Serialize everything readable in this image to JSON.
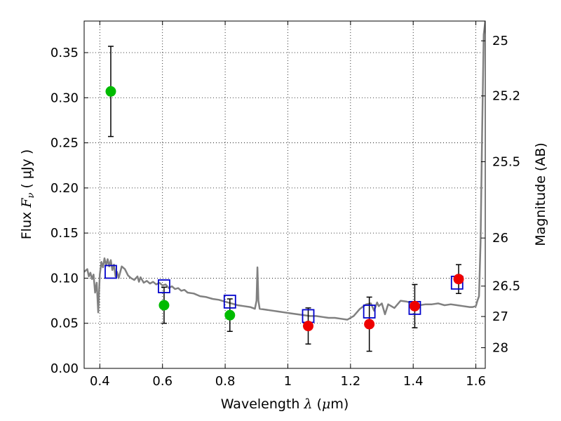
{
  "chart_data": {
    "type": "scatter",
    "title": "",
    "xlabel": {
      "prefix": "Wavelength  ",
      "symbol": "λ",
      "unit_open": " (",
      "unit_mu": "μ",
      "unit_close": "m)"
    },
    "ylabel": {
      "prefix": "Flux  ",
      "symbol": "F",
      "sub": "ν",
      "unit": "  ( μJy )"
    },
    "y2label": "Magnitude (AB)",
    "xlim": [
      0.35,
      1.63
    ],
    "ylim": [
      0.0,
      0.385
    ],
    "grid": true,
    "x_ticks": [
      0.4,
      0.6,
      0.8,
      1.0,
      1.2,
      1.4,
      1.6
    ],
    "x_tick_labels": [
      "0.4",
      "0.6",
      "0.8",
      "1",
      "1.2",
      "1.4",
      "1.6"
    ],
    "y_ticks": [
      0.0,
      0.05,
      0.1,
      0.15,
      0.2,
      0.25,
      0.3,
      0.35
    ],
    "y_tick_labels": [
      "0.00",
      "0.05",
      "0.10",
      "0.15",
      "0.20",
      "0.25",
      "0.30",
      "0.35"
    ],
    "y2_ticks": [
      {
        "label": "25",
        "flux": 0.3631
      },
      {
        "label": "25.2",
        "flux": 0.302
      },
      {
        "label": "25.5",
        "flux": 0.2291
      },
      {
        "label": "26",
        "flux": 0.1445
      },
      {
        "label": "26.5",
        "flux": 0.0912
      },
      {
        "label": "27",
        "flux": 0.0575
      },
      {
        "label": "28",
        "flux": 0.0229
      }
    ],
    "series": [
      {
        "name": "model_spectrum",
        "kind": "line",
        "color": "#808080",
        "points": [
          [
            0.35,
            0.107
          ],
          [
            0.36,
            0.11
          ],
          [
            0.365,
            0.102
          ],
          [
            0.37,
            0.106
          ],
          [
            0.375,
            0.099
          ],
          [
            0.38,
            0.104
          ],
          [
            0.385,
            0.084
          ],
          [
            0.39,
            0.095
          ],
          [
            0.395,
            0.062
          ],
          [
            0.4,
            0.104
          ],
          [
            0.405,
            0.118
          ],
          [
            0.41,
            0.112
          ],
          [
            0.415,
            0.122
          ],
          [
            0.42,
            0.114
          ],
          [
            0.425,
            0.121
          ],
          [
            0.43,
            0.113
          ],
          [
            0.435,
            0.12
          ],
          [
            0.44,
            0.109
          ],
          [
            0.445,
            0.115
          ],
          [
            0.45,
            0.102
          ],
          [
            0.455,
            0.107
          ],
          [
            0.46,
            0.1
          ],
          [
            0.47,
            0.113
          ],
          [
            0.48,
            0.11
          ],
          [
            0.49,
            0.103
          ],
          [
            0.5,
            0.1
          ],
          [
            0.51,
            0.098
          ],
          [
            0.52,
            0.102
          ],
          [
            0.525,
            0.096
          ],
          [
            0.53,
            0.101
          ],
          [
            0.54,
            0.095
          ],
          [
            0.55,
            0.097
          ],
          [
            0.56,
            0.094
          ],
          [
            0.57,
            0.096
          ],
          [
            0.58,
            0.093
          ],
          [
            0.59,
            0.095
          ],
          [
            0.6,
            0.092
          ],
          [
            0.61,
            0.093
          ],
          [
            0.62,
            0.089
          ],
          [
            0.63,
            0.091
          ],
          [
            0.64,
            0.088
          ],
          [
            0.65,
            0.089
          ],
          [
            0.66,
            0.086
          ],
          [
            0.67,
            0.087
          ],
          [
            0.68,
            0.084
          ],
          [
            0.7,
            0.083
          ],
          [
            0.72,
            0.08
          ],
          [
            0.74,
            0.079
          ],
          [
            0.76,
            0.077
          ],
          [
            0.78,
            0.076
          ],
          [
            0.8,
            0.074
          ],
          [
            0.82,
            0.072
          ],
          [
            0.84,
            0.07
          ],
          [
            0.86,
            0.069
          ],
          [
            0.88,
            0.068
          ],
          [
            0.895,
            0.066
          ],
          [
            0.9,
            0.075
          ],
          [
            0.903,
            0.112
          ],
          [
            0.906,
            0.075
          ],
          [
            0.91,
            0.066
          ],
          [
            0.93,
            0.065
          ],
          [
            0.95,
            0.064
          ],
          [
            0.97,
            0.063
          ],
          [
            0.99,
            0.062
          ],
          [
            1.01,
            0.061
          ],
          [
            1.03,
            0.06
          ],
          [
            1.05,
            0.059
          ],
          [
            1.07,
            0.058
          ],
          [
            1.09,
            0.058
          ],
          [
            1.11,
            0.057
          ],
          [
            1.13,
            0.056
          ],
          [
            1.15,
            0.056
          ],
          [
            1.17,
            0.055
          ],
          [
            1.19,
            0.054
          ],
          [
            1.21,
            0.058
          ],
          [
            1.23,
            0.066
          ],
          [
            1.25,
            0.071
          ],
          [
            1.265,
            0.072
          ],
          [
            1.275,
            0.064
          ],
          [
            1.285,
            0.073
          ],
          [
            1.29,
            0.069
          ],
          [
            1.3,
            0.072
          ],
          [
            1.31,
            0.06
          ],
          [
            1.32,
            0.071
          ],
          [
            1.34,
            0.067
          ],
          [
            1.36,
            0.075
          ],
          [
            1.38,
            0.074
          ],
          [
            1.4,
            0.072
          ],
          [
            1.42,
            0.07
          ],
          [
            1.44,
            0.071
          ],
          [
            1.46,
            0.071
          ],
          [
            1.48,
            0.072
          ],
          [
            1.5,
            0.07
          ],
          [
            1.52,
            0.071
          ],
          [
            1.54,
            0.07
          ],
          [
            1.56,
            0.069
          ],
          [
            1.58,
            0.068
          ],
          [
            1.59,
            0.068
          ],
          [
            1.6,
            0.069
          ],
          [
            1.605,
            0.075
          ],
          [
            1.61,
            0.08
          ],
          [
            1.615,
            0.14
          ],
          [
            1.62,
            0.26
          ],
          [
            1.625,
            0.37
          ],
          [
            1.63,
            0.385
          ]
        ]
      },
      {
        "name": "model_band_flux",
        "kind": "open_square",
        "color": "#0000cc",
        "x": [
          0.435,
          0.605,
          0.815,
          1.065,
          1.26,
          1.405,
          1.54
        ],
        "y": [
          0.107,
          0.091,
          0.074,
          0.058,
          0.063,
          0.067,
          0.095
        ]
      },
      {
        "name": "optical_detections",
        "kind": "filled_circle",
        "color": "#00bb00",
        "x": [
          0.435,
          0.605,
          0.815
        ],
        "y": [
          0.307,
          0.07,
          0.059
        ],
        "err": [
          0.05,
          0.02,
          0.018
        ]
      },
      {
        "name": "nir_detections",
        "kind": "filled_circle",
        "color": "#ee0000",
        "x": [
          1.065,
          1.26,
          1.405,
          1.545
        ],
        "y": [
          0.047,
          0.049,
          0.069,
          0.099
        ],
        "err": [
          0.02,
          0.03,
          0.024,
          0.016
        ]
      }
    ]
  }
}
